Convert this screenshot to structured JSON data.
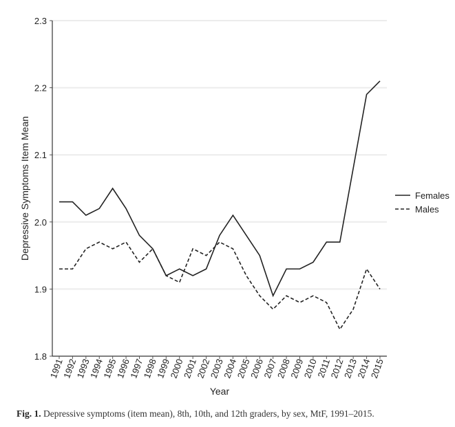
{
  "chart_data": {
    "type": "line",
    "xlabel": "Year",
    "ylabel": "Depressive Symptoms Item Mean",
    "ylim": [
      1.8,
      2.3
    ],
    "yticks": [
      "1.8",
      "1.9",
      "2.0",
      "2.1",
      "2.2",
      "2.3"
    ],
    "grid": true,
    "legend_position": "right",
    "categories": [
      "1991",
      "1992",
      "1993",
      "1994",
      "1995",
      "1996",
      "1997",
      "1998",
      "1999",
      "2000",
      "2001",
      "2002",
      "2003",
      "2004",
      "2005",
      "2006",
      "2007",
      "2008",
      "2009",
      "2010",
      "2011",
      "2012",
      "2013",
      "2014",
      "2015"
    ],
    "series": [
      {
        "name": "Females",
        "style": "solid",
        "color": "#222222",
        "values": [
          2.03,
          2.03,
          2.01,
          2.02,
          2.05,
          2.02,
          1.98,
          1.96,
          1.92,
          1.93,
          1.92,
          1.93,
          1.98,
          2.01,
          1.98,
          1.95,
          1.89,
          1.93,
          1.93,
          1.94,
          1.97,
          1.97,
          2.08,
          2.19,
          2.21
        ]
      },
      {
        "name": "Males",
        "style": "dashed",
        "color": "#222222",
        "values": [
          1.93,
          1.93,
          1.96,
          1.97,
          1.96,
          1.97,
          1.94,
          1.96,
          1.92,
          1.91,
          1.96,
          1.95,
          1.97,
          1.96,
          1.92,
          1.89,
          1.87,
          1.89,
          1.88,
          1.89,
          1.88,
          1.84,
          1.87,
          1.93,
          1.9
        ]
      }
    ]
  },
  "caption": {
    "label": "Fig. 1.",
    "text": "Depressive symptoms (item mean), 8th, 10th, and 12th graders, by sex, MtF, 1991–2015."
  }
}
